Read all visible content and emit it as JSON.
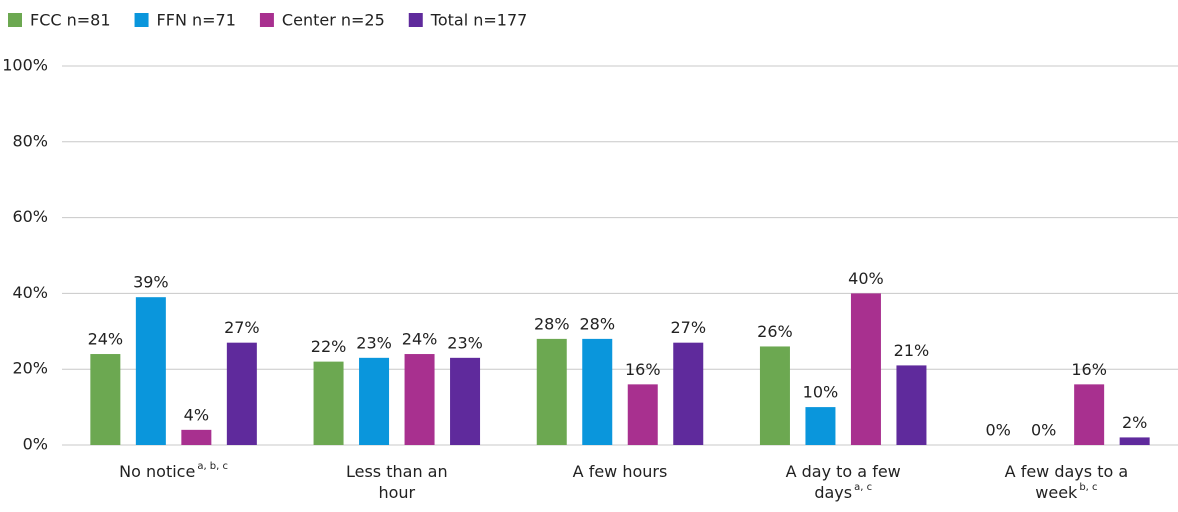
{
  "chart_data": {
    "type": "bar",
    "categories": [
      "No notice",
      "Less than an hour",
      "A few hours",
      "A day to a few days",
      "A few days to a week"
    ],
    "category_notes": [
      "a, b, c",
      null,
      null,
      "a, c",
      "b, c"
    ],
    "series": [
      {
        "name": "FCC n=81",
        "color": "#6ca851",
        "values": [
          24,
          22,
          28,
          26,
          0
        ],
        "value_labels": [
          "24%",
          "22%",
          "28%",
          "26%",
          "0%"
        ]
      },
      {
        "name": "FFN n=71",
        "color": "#0a96dc",
        "values": [
          39,
          23,
          28,
          10,
          0
        ],
        "value_labels": [
          "39%",
          "23%",
          "28%",
          "10%",
          "0%"
        ]
      },
      {
        "name": "Center n=25",
        "color": "#a8308f",
        "values": [
          4,
          24,
          16,
          40,
          16
        ],
        "value_labels": [
          "4%",
          "24%",
          "16%",
          "40%",
          "16%"
        ]
      },
      {
        "name": "Total n=177",
        "color": "#5f2a9c",
        "values": [
          27,
          23,
          27,
          21,
          2
        ],
        "value_labels": [
          "27%",
          "23%",
          "27%",
          "21%",
          "2%"
        ]
      }
    ],
    "ylim": [
      0,
      100
    ],
    "yticks": [
      {
        "value": 0,
        "label": "0%"
      },
      {
        "value": 20,
        "label": "20%"
      },
      {
        "value": 40,
        "label": "40%"
      },
      {
        "value": 60,
        "label": "60%"
      },
      {
        "value": 80,
        "label": "80%"
      },
      {
        "value": 100,
        "label": "100%"
      }
    ],
    "grid": true,
    "legend": "top-left"
  }
}
